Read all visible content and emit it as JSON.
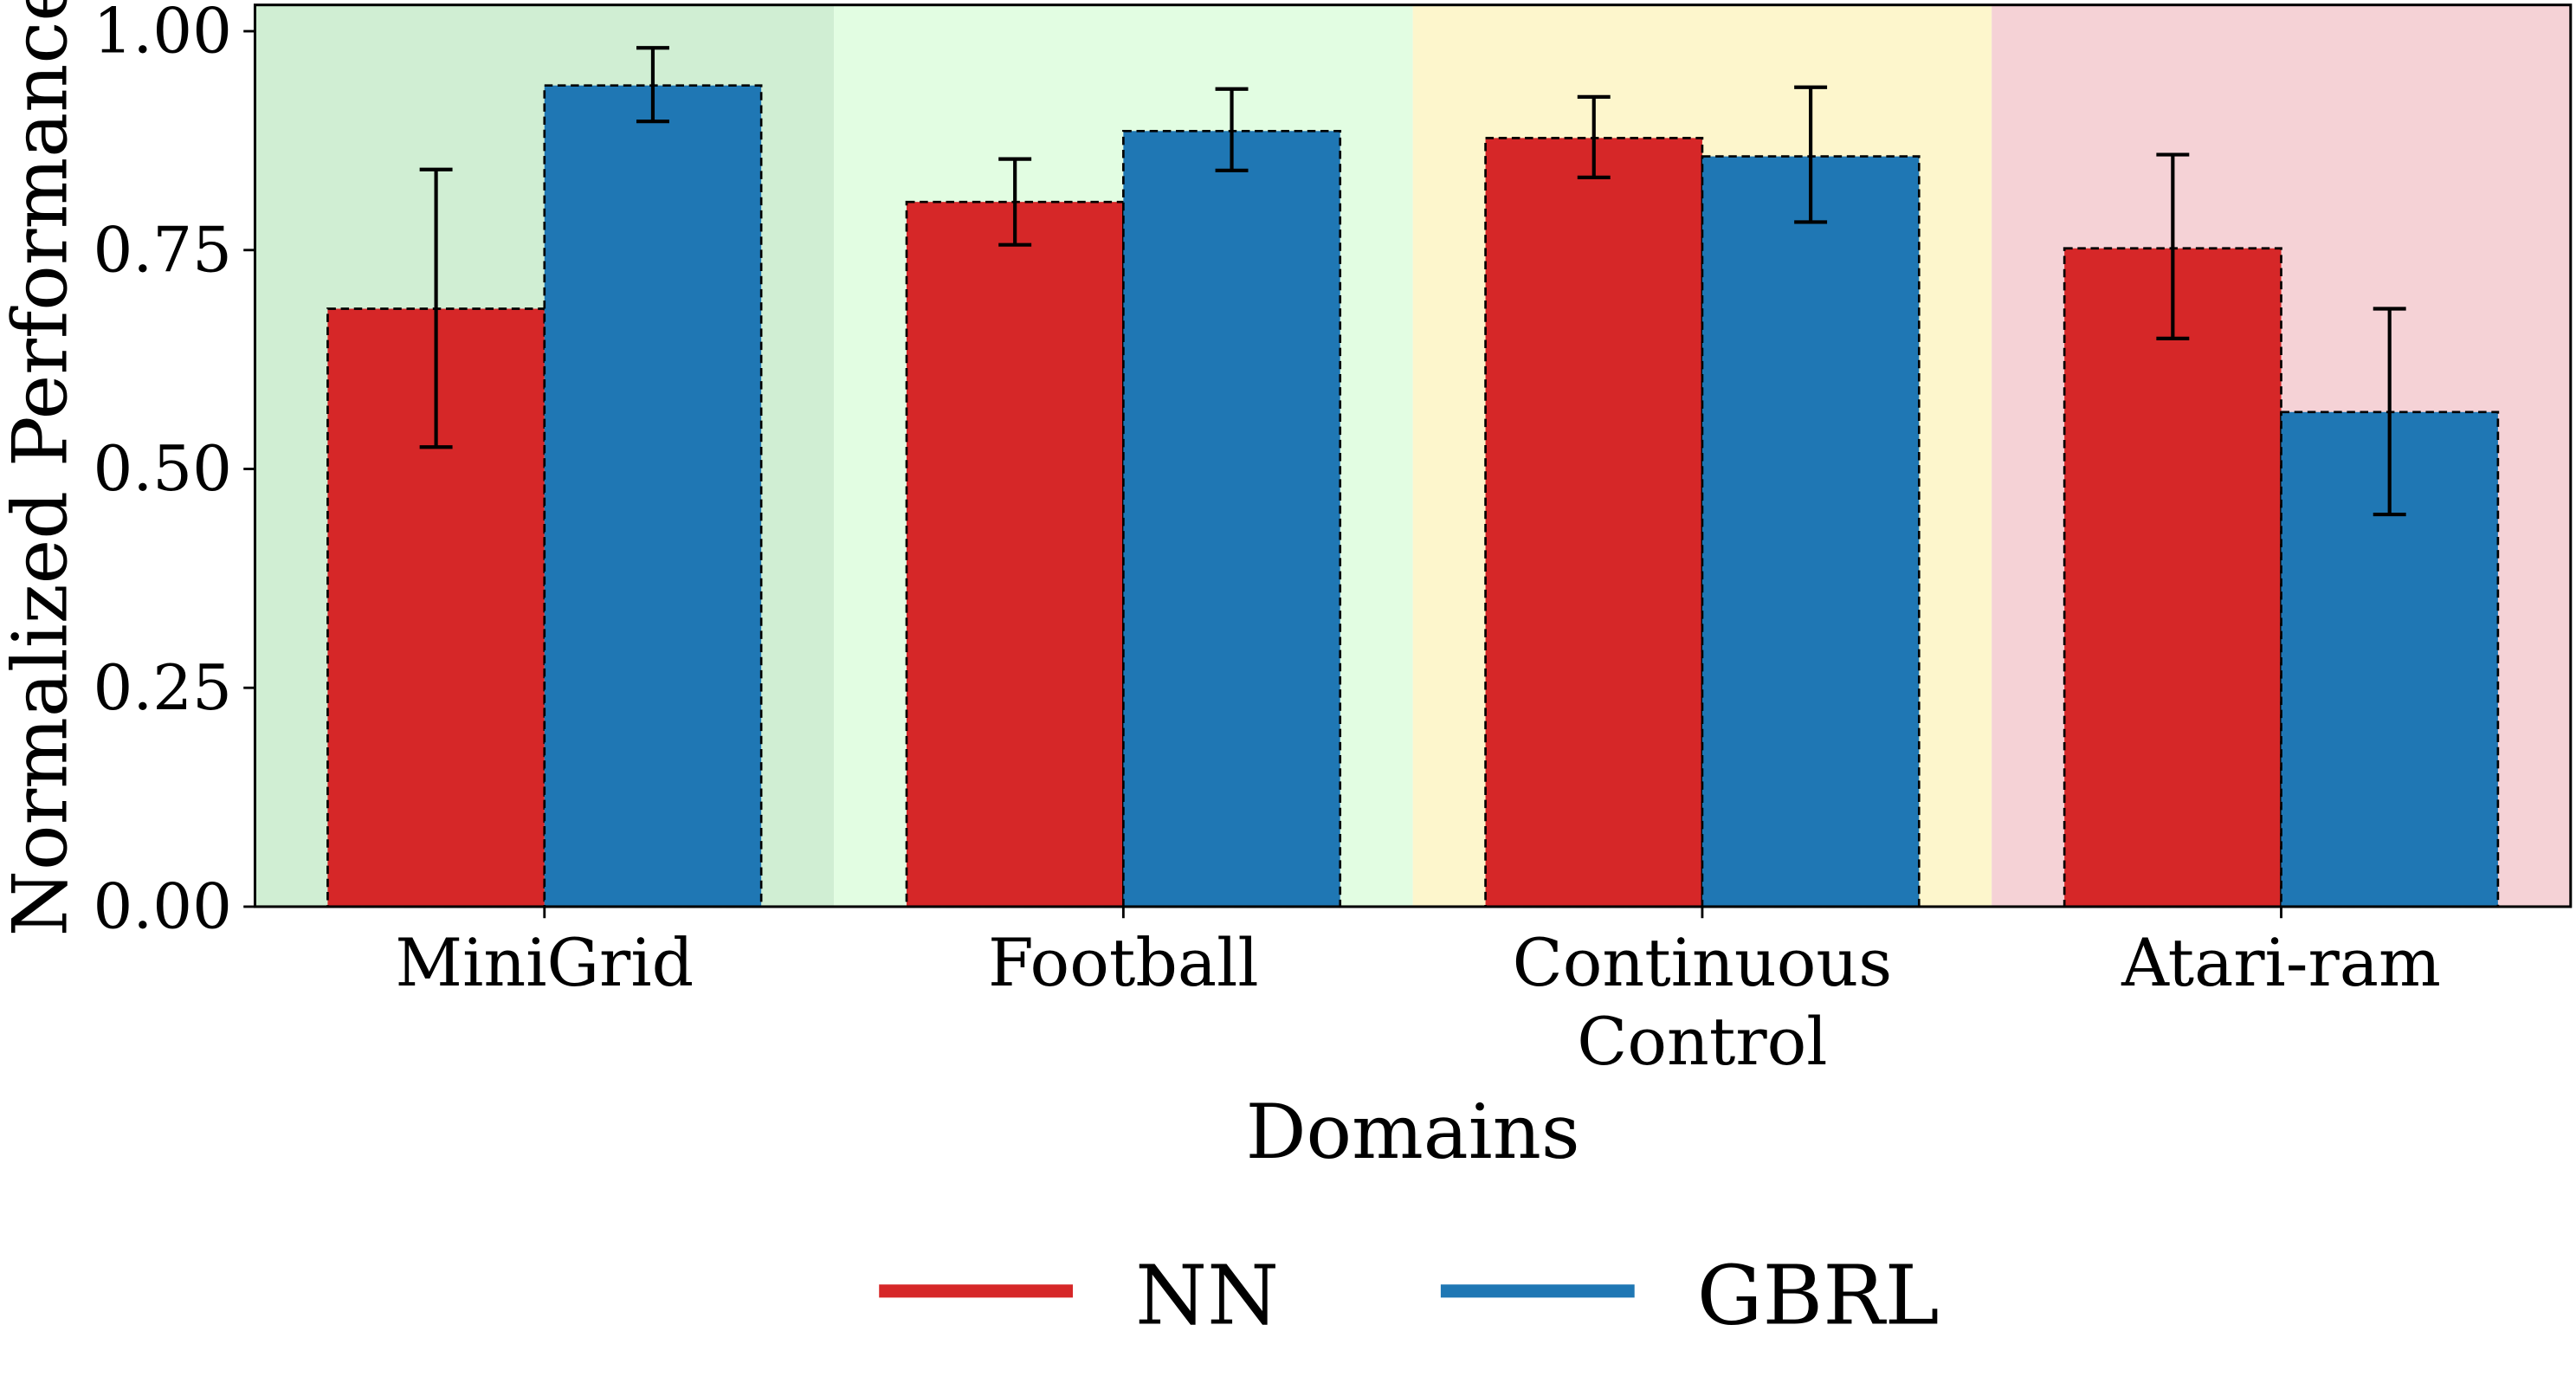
{
  "chart_data": {
    "type": "bar",
    "xlabel": "Domains",
    "ylabel": "Normalized Performance",
    "ylim": [
      0,
      1.03
    ],
    "yticks": [
      "0.00",
      "0.25",
      "0.50",
      "0.75",
      "1.00"
    ],
    "categories": [
      "MiniGrid",
      "Football",
      "Continuous Control",
      "Atari-ram"
    ],
    "category_lines": [
      [
        "MiniGrid"
      ],
      [
        "Football"
      ],
      [
        "Continuous",
        "Control"
      ],
      [
        "Atari-ram"
      ]
    ],
    "category_backgrounds": [
      "#d0eed3",
      "#e2fde2",
      "#fdf6cc",
      "#f5d2d6"
    ],
    "grid": false,
    "legend_position": "bottom",
    "series": [
      {
        "name": "NN",
        "color": "#d62728",
        "values": [
          0.683,
          0.805,
          0.878,
          0.752
        ],
        "err_low": [
          0.525,
          0.756,
          0.833,
          0.649
        ],
        "err_high": [
          0.842,
          0.854,
          0.925,
          0.859
        ]
      },
      {
        "name": "GBRL",
        "color": "#1f77b4",
        "values": [
          0.938,
          0.886,
          0.857,
          0.565
        ],
        "err_low": [
          0.897,
          0.841,
          0.782,
          0.448
        ],
        "err_high": [
          0.981,
          0.934,
          0.936,
          0.683
        ]
      }
    ]
  }
}
